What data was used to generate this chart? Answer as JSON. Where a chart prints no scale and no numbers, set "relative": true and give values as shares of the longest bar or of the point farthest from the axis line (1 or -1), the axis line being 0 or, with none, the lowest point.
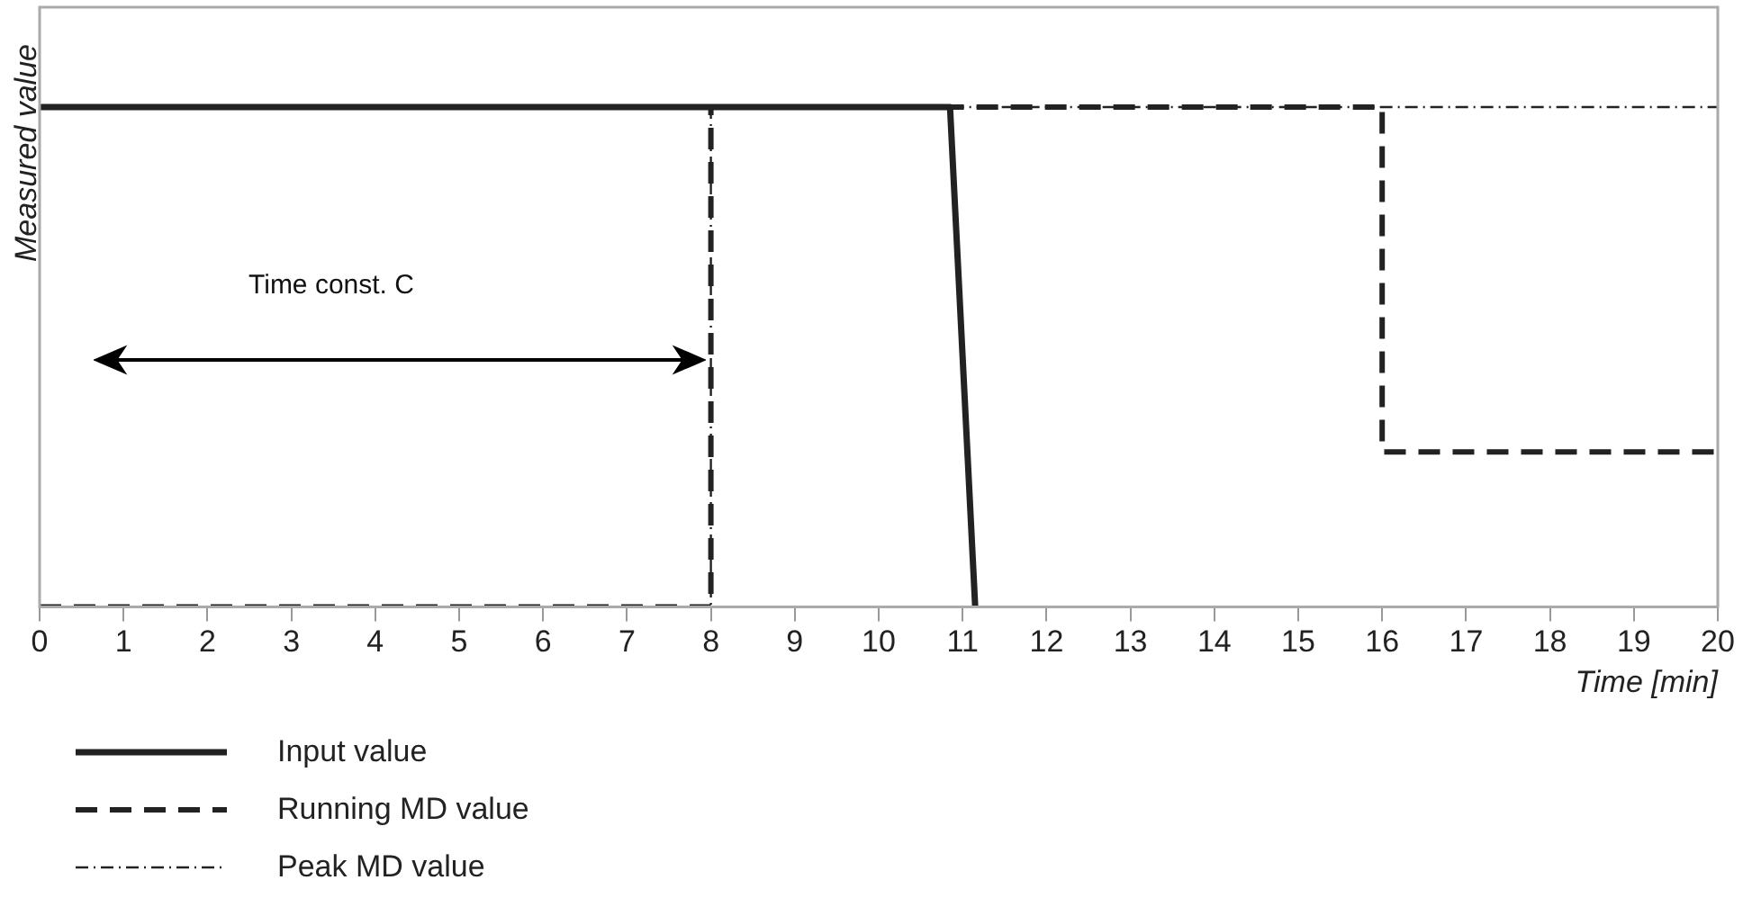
{
  "chart_data": {
    "type": "line",
    "xlabel": "Time [min]",
    "ylabel": "Measured value",
    "relative": true,
    "xlim": [
      0,
      20
    ],
    "xticks": [
      0,
      1,
      2,
      3,
      4,
      5,
      6,
      7,
      8,
      9,
      10,
      11,
      12,
      13,
      14,
      15,
      16,
      17,
      18,
      19,
      20
    ],
    "legend": "bottom",
    "grid": false,
    "marker": "none",
    "annotations": [
      "Time const. C"
    ],
    "series": [
      {
        "name": "Input value",
        "color": "#222222",
        "line_style": "solid",
        "x": [
          0,
          10.85,
          11.15
        ],
        "values": [
          1,
          1,
          0
        ]
      },
      {
        "name": "Running MD value",
        "color": "#222222",
        "line_style": "dashed",
        "x": [
          0,
          8,
          8,
          16,
          16,
          20
        ],
        "values": [
          0,
          0,
          1,
          1,
          0.31,
          0.31
        ]
      },
      {
        "name": "Peak MD value",
        "color": "#222222",
        "line_style": "dotted",
        "x": [
          0,
          8,
          8,
          20
        ],
        "values": [
          0,
          0,
          1,
          1
        ]
      }
    ]
  }
}
